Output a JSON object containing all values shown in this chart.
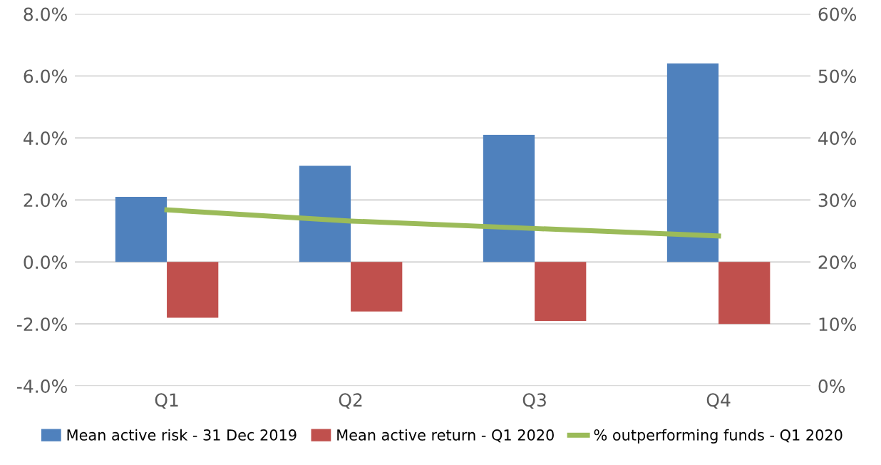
{
  "chart_data": {
    "type": "bar",
    "categories": [
      "Q1",
      "Q2",
      "Q3",
      "Q4"
    ],
    "series": [
      {
        "name": "Mean active risk - 31 Dec 2019",
        "color": "#4f81bd",
        "values": [
          2.1,
          3.1,
          4.1,
          6.4
        ]
      },
      {
        "name": "Mean active return - Q1 2020",
        "color": "#c0504d",
        "values": [
          -1.8,
          -1.6,
          -1.9,
          -2.0
        ]
      },
      {
        "name": "% outperforming funds - Q1 2020",
        "color": "#9bbb59",
        "type": "line",
        "axis": "y2",
        "values": [
          28.4,
          26.6,
          25.4,
          24.2
        ]
      }
    ],
    "ylim": [
      -4,
      8
    ],
    "yticks": [
      {
        "value": -4,
        "label": "-4.0%"
      },
      {
        "value": -2,
        "label": "-2.0%"
      },
      {
        "value": 0,
        "label": "0.0%"
      },
      {
        "value": 2,
        "label": "2.0%"
      },
      {
        "value": 4,
        "label": "4.0%"
      },
      {
        "value": 6,
        "label": "6.0%"
      },
      {
        "value": 8,
        "label": "8.0%"
      }
    ],
    "y2lim": [
      0,
      60
    ],
    "y2ticks": [
      {
        "value": 0,
        "label": "0%"
      },
      {
        "value": 10,
        "label": "10%"
      },
      {
        "value": 20,
        "label": "20%"
      },
      {
        "value": 30,
        "label": "30%"
      },
      {
        "value": 40,
        "label": "40%"
      },
      {
        "value": 50,
        "label": "50%"
      },
      {
        "value": 60,
        "label": "60%"
      }
    ],
    "grid": "y",
    "legend": "bottom",
    "marker": "none",
    "line_style": "solid"
  }
}
